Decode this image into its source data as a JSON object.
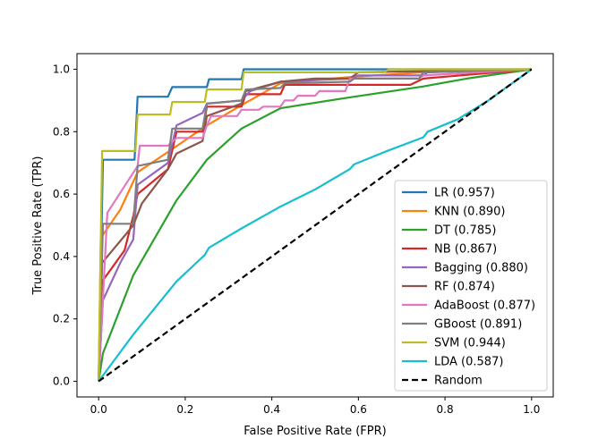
{
  "chart_data": {
    "type": "line",
    "xlabel": "False Positive Rate (FPR)",
    "ylabel": "True Positive Rate (TPR)",
    "xlim": [
      -0.05,
      1.05
    ],
    "ylim": [
      -0.05,
      1.05
    ],
    "xticks": [
      "0.0",
      "0.2",
      "0.4",
      "0.6",
      "0.8",
      "1.0"
    ],
    "yticks": [
      "0.0",
      "0.2",
      "0.4",
      "0.6",
      "0.8",
      "1.0"
    ],
    "grid": false,
    "legend_position": "lower-right",
    "series": [
      {
        "name": "LR (0.957)",
        "color": "#1f77b4",
        "dashed": false,
        "points": [
          [
            0,
            0
          ],
          [
            0.01,
            0.71
          ],
          [
            0.083,
            0.71
          ],
          [
            0.09,
            0.912
          ],
          [
            0.16,
            0.912
          ],
          [
            0.17,
            0.943
          ],
          [
            0.25,
            0.943
          ],
          [
            0.255,
            0.968
          ],
          [
            0.33,
            0.968
          ],
          [
            0.335,
            1.0
          ],
          [
            1.0,
            1.0
          ]
        ]
      },
      {
        "name": "KNN (0.890)",
        "color": "#ff7f0e",
        "dashed": false,
        "points": [
          [
            0,
            0
          ],
          [
            0.005,
            0.46
          ],
          [
            0.05,
            0.55
          ],
          [
            0.09,
            0.67
          ],
          [
            0.16,
            0.735
          ],
          [
            0.25,
            0.82
          ],
          [
            0.33,
            0.885
          ],
          [
            0.42,
            0.955
          ],
          [
            0.58,
            0.975
          ],
          [
            0.75,
            0.99
          ],
          [
            1.0,
            1.0
          ]
        ]
      },
      {
        "name": "DT (0.785)",
        "color": "#2ca02c",
        "dashed": false,
        "points": [
          [
            0,
            0
          ],
          [
            0.01,
            0.09
          ],
          [
            0.08,
            0.34
          ],
          [
            0.18,
            0.58
          ],
          [
            0.25,
            0.71
          ],
          [
            0.33,
            0.81
          ],
          [
            0.42,
            0.875
          ],
          [
            0.58,
            0.91
          ],
          [
            0.75,
            0.945
          ],
          [
            0.85,
            0.97
          ],
          [
            1.0,
            1.0
          ]
        ]
      },
      {
        "name": "NB (0.867)",
        "color": "#d62728",
        "dashed": false,
        "points": [
          [
            0,
            0
          ],
          [
            0.008,
            0.32
          ],
          [
            0.06,
            0.42
          ],
          [
            0.08,
            0.53
          ],
          [
            0.09,
            0.6
          ],
          [
            0.16,
            0.68
          ],
          [
            0.18,
            0.8
          ],
          [
            0.24,
            0.8
          ],
          [
            0.25,
            0.88
          ],
          [
            0.33,
            0.88
          ],
          [
            0.34,
            0.92
          ],
          [
            0.42,
            0.92
          ],
          [
            0.43,
            0.95
          ],
          [
            0.72,
            0.95
          ],
          [
            0.75,
            0.97
          ],
          [
            1.0,
            1.0
          ]
        ]
      },
      {
        "name": "Bagging (0.880)",
        "color": "#9467bd",
        "dashed": false,
        "points": [
          [
            0,
            0
          ],
          [
            0.01,
            0.26
          ],
          [
            0.05,
            0.38
          ],
          [
            0.08,
            0.455
          ],
          [
            0.09,
            0.63
          ],
          [
            0.16,
            0.7
          ],
          [
            0.18,
            0.82
          ],
          [
            0.24,
            0.86
          ],
          [
            0.25,
            0.89
          ],
          [
            0.33,
            0.9
          ],
          [
            0.35,
            0.93
          ],
          [
            0.42,
            0.96
          ],
          [
            0.58,
            0.97
          ],
          [
            0.6,
            0.98
          ],
          [
            0.75,
            0.98
          ],
          [
            0.76,
            0.99
          ],
          [
            1.0,
            1.0
          ]
        ]
      },
      {
        "name": "RF (0.874)",
        "color": "#8c564b",
        "dashed": false,
        "points": [
          [
            0,
            0
          ],
          [
            0.008,
            0.38
          ],
          [
            0.05,
            0.45
          ],
          [
            0.08,
            0.5
          ],
          [
            0.1,
            0.57
          ],
          [
            0.16,
            0.68
          ],
          [
            0.18,
            0.73
          ],
          [
            0.24,
            0.77
          ],
          [
            0.25,
            0.85
          ],
          [
            0.33,
            0.89
          ],
          [
            0.34,
            0.93
          ],
          [
            0.42,
            0.96
          ],
          [
            0.5,
            0.97
          ],
          [
            0.58,
            0.97
          ],
          [
            0.6,
            0.99
          ],
          [
            1.0,
            1.0
          ]
        ]
      },
      {
        "name": "AdaBoost (0.877)",
        "color": "#e377c2",
        "dashed": false,
        "points": [
          [
            0,
            0
          ],
          [
            0.02,
            0.54
          ],
          [
            0.09,
            0.69
          ],
          [
            0.095,
            0.755
          ],
          [
            0.16,
            0.755
          ],
          [
            0.18,
            0.78
          ],
          [
            0.24,
            0.78
          ],
          [
            0.25,
            0.82
          ],
          [
            0.26,
            0.85
          ],
          [
            0.32,
            0.85
          ],
          [
            0.33,
            0.87
          ],
          [
            0.37,
            0.87
          ],
          [
            0.38,
            0.88
          ],
          [
            0.42,
            0.88
          ],
          [
            0.43,
            0.9
          ],
          [
            0.45,
            0.9
          ],
          [
            0.46,
            0.915
          ],
          [
            0.5,
            0.915
          ],
          [
            0.51,
            0.93
          ],
          [
            0.57,
            0.93
          ],
          [
            0.58,
            0.97
          ],
          [
            0.74,
            0.97
          ],
          [
            0.75,
            0.98
          ],
          [
            1.0,
            1.0
          ]
        ]
      },
      {
        "name": "GBoost (0.891)",
        "color": "#7f7f7f",
        "dashed": false,
        "points": [
          [
            0,
            0
          ],
          [
            0.01,
            0.505
          ],
          [
            0.08,
            0.505
          ],
          [
            0.09,
            0.69
          ],
          [
            0.16,
            0.71
          ],
          [
            0.17,
            0.81
          ],
          [
            0.24,
            0.81
          ],
          [
            0.25,
            0.89
          ],
          [
            0.33,
            0.9
          ],
          [
            0.34,
            0.935
          ],
          [
            0.42,
            0.94
          ],
          [
            0.43,
            0.955
          ],
          [
            0.58,
            0.96
          ],
          [
            0.59,
            0.97
          ],
          [
            0.74,
            0.97
          ],
          [
            0.75,
            0.99
          ],
          [
            1.0,
            1.0
          ]
        ]
      },
      {
        "name": "SVM (0.944)",
        "color": "#bcbd22",
        "dashed": false,
        "points": [
          [
            0,
            0
          ],
          [
            0.008,
            0.738
          ],
          [
            0.085,
            0.738
          ],
          [
            0.09,
            0.855
          ],
          [
            0.165,
            0.855
          ],
          [
            0.17,
            0.895
          ],
          [
            0.245,
            0.895
          ],
          [
            0.25,
            0.935
          ],
          [
            0.33,
            0.935
          ],
          [
            0.335,
            0.99
          ],
          [
            0.66,
            0.99
          ],
          [
            0.67,
            1.0
          ],
          [
            1.0,
            1.0
          ]
        ]
      },
      {
        "name": "LDA (0.587)",
        "color": "#17becf",
        "dashed": false,
        "points": [
          [
            0,
            0
          ],
          [
            0.08,
            0.15
          ],
          [
            0.18,
            0.32
          ],
          [
            0.245,
            0.405
          ],
          [
            0.255,
            0.428
          ],
          [
            0.33,
            0.49
          ],
          [
            0.42,
            0.56
          ],
          [
            0.5,
            0.615
          ],
          [
            0.58,
            0.68
          ],
          [
            0.59,
            0.695
          ],
          [
            0.67,
            0.74
          ],
          [
            0.75,
            0.782
          ],
          [
            0.76,
            0.8
          ],
          [
            0.83,
            0.84
          ],
          [
            0.9,
            0.9
          ],
          [
            1.0,
            1.0
          ]
        ]
      },
      {
        "name": "Random",
        "color": "#000000",
        "dashed": true,
        "points": [
          [
            0,
            0
          ],
          [
            1,
            1
          ]
        ]
      }
    ]
  }
}
